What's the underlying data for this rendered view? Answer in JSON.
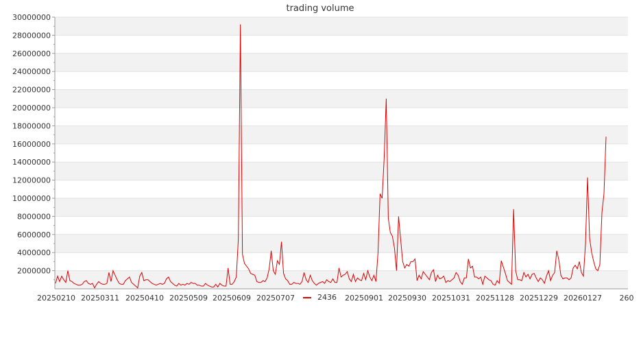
{
  "chart_data": {
    "type": "line",
    "title": "trading volume",
    "xlabel": "",
    "ylabel": "",
    "ylim": [
      0,
      30000000
    ],
    "y_ticks": [
      "2000000",
      "4000000",
      "6000000",
      "8000000",
      "10000000",
      "12000000",
      "14000000",
      "16000000",
      "18000000",
      "20000000",
      "22000000",
      "24000000",
      "26000000",
      "28000000",
      "30000000"
    ],
    "x_ticks": [
      "20250210",
      "20250311",
      "20250410",
      "20250509",
      "20250609",
      "20250707",
      "20250901",
      "20250930",
      "20251031",
      "20251128",
      "20251229",
      "20260127",
      "260"
    ],
    "grid": "horizontal bands",
    "legend_position": "bottom",
    "series": [
      {
        "name": "2436",
        "color": "#dd0000",
        "values": [
          600000,
          1400000,
          800000,
          1400000,
          1000000,
          700000,
          2000000,
          900000,
          800000,
          600000,
          500000,
          400000,
          400000,
          500000,
          800000,
          900000,
          600000,
          500000,
          600000,
          100000,
          500000,
          800000,
          600000,
          500000,
          500000,
          600000,
          1800000,
          800000,
          2000000,
          1500000,
          1000000,
          600000,
          500000,
          500000,
          900000,
          1100000,
          1300000,
          700000,
          500000,
          300000,
          100000,
          1400000,
          1800000,
          900000,
          1000000,
          1000000,
          800000,
          600000,
          500000,
          400000,
          500000,
          600000,
          500000,
          600000,
          1100000,
          1300000,
          800000,
          600000,
          400000,
          300000,
          600000,
          400000,
          500000,
          400000,
          600000,
          500000,
          700000,
          600000,
          600000,
          400000,
          400000,
          300000,
          300000,
          600000,
          400000,
          300000,
          200000,
          200000,
          500000,
          200000,
          600000,
          400000,
          300000,
          300000,
          2300000,
          500000,
          500000,
          800000,
          1300000,
          5500000,
          29200000,
          3800000,
          2800000,
          2500000,
          2200000,
          1700000,
          1600000,
          1500000,
          800000,
          700000,
          700000,
          900000,
          800000,
          1200000,
          2200000,
          4200000,
          2000000,
          1600000,
          3100000,
          2700000,
          5200000,
          1700000,
          1100000,
          900000,
          500000,
          500000,
          700000,
          600000,
          600000,
          500000,
          800000,
          1800000,
          1000000,
          700000,
          1500000,
          900000,
          600000,
          400000,
          600000,
          700000,
          800000,
          600000,
          1000000,
          800000,
          700000,
          1100000,
          700000,
          700000,
          2300000,
          1300000,
          1500000,
          1600000,
          1900000,
          1100000,
          800000,
          1600000,
          800000,
          1200000,
          1000000,
          900000,
          1700000,
          1000000,
          2000000,
          1300000,
          900000,
          1500000,
          800000,
          4000000,
          10500000,
          10000000,
          14500000,
          21000000,
          7800000,
          6200000,
          5800000,
          4500000,
          2000000,
          8000000,
          5500000,
          3000000,
          2300000,
          2700000,
          2500000,
          3000000,
          3000000,
          3300000,
          900000,
          1500000,
          1100000,
          1900000,
          1600000,
          1300000,
          1000000,
          1800000,
          2100000,
          800000,
          1500000,
          1100000,
          1200000,
          1400000,
          700000,
          900000,
          800000,
          1000000,
          1200000,
          1800000,
          1500000,
          800000,
          500000,
          1200000,
          1200000,
          3300000,
          2300000,
          2500000,
          1300000,
          1300000,
          1100000,
          1300000,
          500000,
          1400000,
          1200000,
          1000000,
          900000,
          500000,
          400000,
          900000,
          600000,
          3100000,
          2400000,
          1700000,
          900000,
          700000,
          500000,
          8800000,
          2000000,
          1000000,
          1000000,
          900000,
          1800000,
          1300000,
          1600000,
          1100000,
          1600000,
          1700000,
          1200000,
          800000,
          1200000,
          1000000,
          600000,
          1400000,
          2000000,
          900000,
          1500000,
          1800000,
          4200000,
          3200000,
          1500000,
          1100000,
          1200000,
          1200000,
          1000000,
          1200000,
          2300000,
          2600000,
          2200000,
          3000000,
          1800000,
          1400000,
          5000000,
          12300000,
          5600000,
          4000000,
          3000000,
          2200000,
          2000000,
          2700000,
          8400000,
          10500000,
          16800000
        ]
      }
    ]
  }
}
